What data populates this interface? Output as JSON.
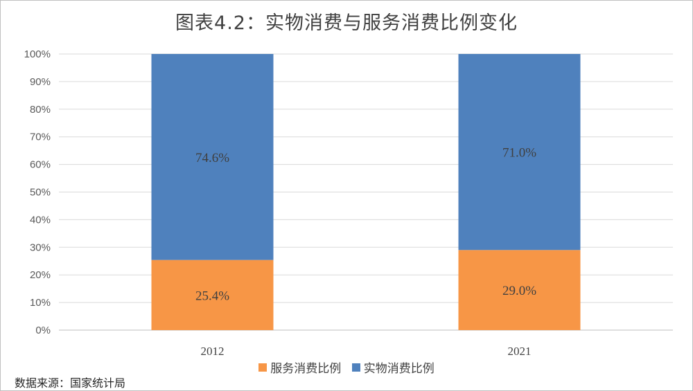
{
  "chart_data": {
    "type": "bar",
    "stacked": true,
    "title": "图表4.2：实物消费与服务消费比例变化",
    "categories": [
      "2012",
      "2021"
    ],
    "series": [
      {
        "name": "服务消费比例",
        "values": [
          25.4,
          29.0
        ],
        "labels": [
          "25.4%",
          "29.0%"
        ],
        "color": "#F79646"
      },
      {
        "name": "实物消费比例",
        "values": [
          74.6,
          71.0
        ],
        "labels": [
          "74.6%",
          "71.0%"
        ],
        "color": "#4F81BD"
      }
    ],
    "ylim": [
      0,
      100
    ],
    "yticks": [
      "0%",
      "10%",
      "20%",
      "30%",
      "40%",
      "50%",
      "60%",
      "70%",
      "80%",
      "90%",
      "100%"
    ],
    "grid": true,
    "legend_position": "bottom"
  },
  "footer": {
    "source": "数据来源：国家统计局"
  }
}
